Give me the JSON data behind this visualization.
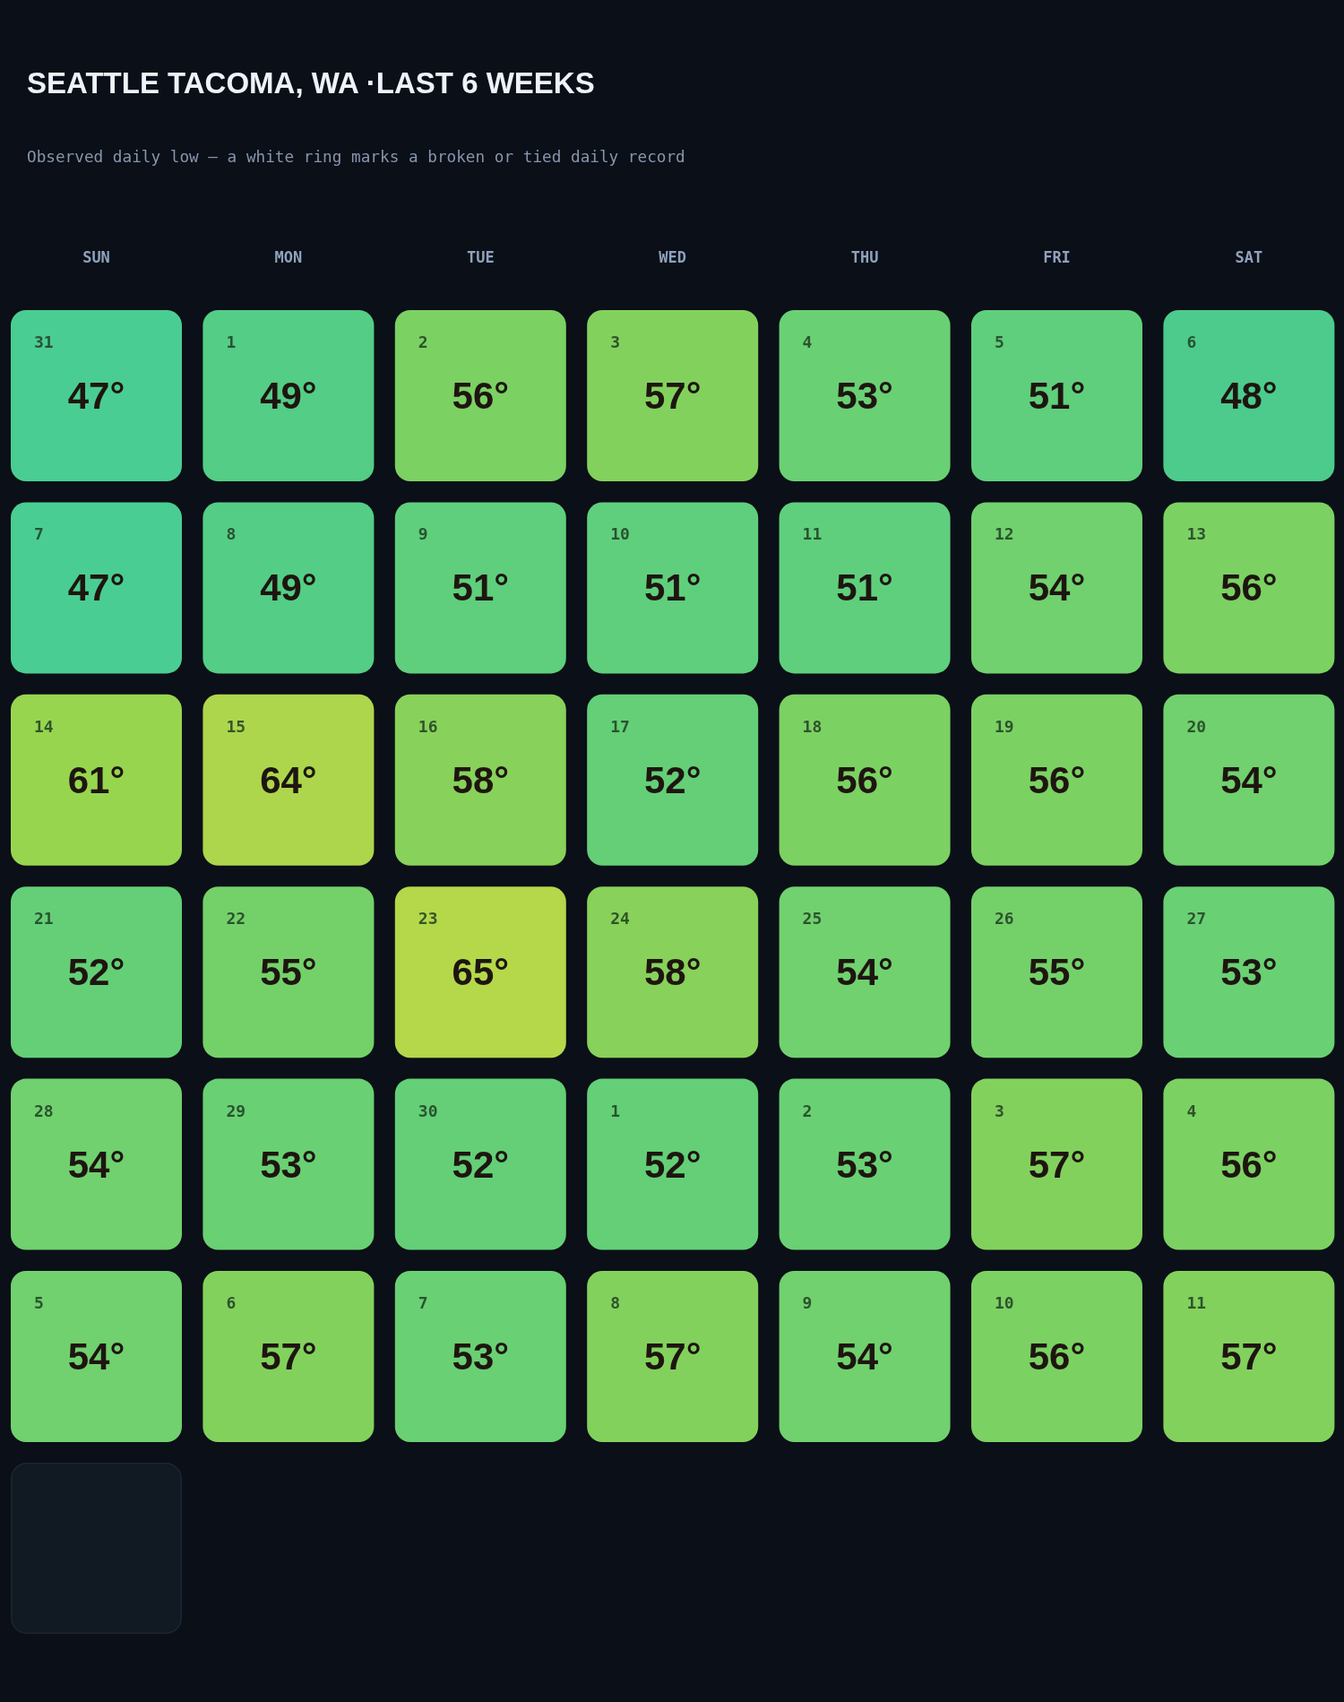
{
  "chart_data": {
    "type": "heatmap",
    "title": "SEATTLE TACOMA, WA ·LAST 6 WEEKS",
    "subtitle": "Observed daily low — a white ring marks a broken or tied daily record",
    "categories": [
      "SUN",
      "MON",
      "TUE",
      "WED",
      "THU",
      "FRI",
      "SAT"
    ],
    "y_categories": [
      null,
      null,
      null,
      null,
      null,
      null
    ],
    "cells": [
      [
        47,
        49,
        56,
        57,
        53,
        51,
        48
      ],
      [
        47,
        49,
        51,
        51,
        51,
        54,
        56
      ],
      [
        61,
        64,
        58,
        52,
        56,
        56,
        54
      ],
      [
        52,
        55,
        65,
        58,
        54,
        55,
        53
      ],
      [
        54,
        53,
        52,
        52,
        53,
        57,
        56
      ],
      [
        54,
        57,
        53,
        57,
        54,
        56,
        57
      ]
    ],
    "cell_labels": [
      [
        "47°",
        "49°",
        "56°",
        "57°",
        "53°",
        "51°",
        "48°"
      ],
      [
        "47°",
        "49°",
        "51°",
        "51°",
        "51°",
        "54°",
        "56°"
      ],
      [
        "61°",
        "64°",
        "58°",
        "52°",
        "56°",
        "56°",
        "54°"
      ],
      [
        "52°",
        "55°",
        "65°",
        "58°",
        "54°",
        "55°",
        "53°"
      ],
      [
        "54°",
        "53°",
        "52°",
        "52°",
        "53°",
        "57°",
        "56°"
      ],
      [
        "54°",
        "57°",
        "53°",
        "57°",
        "54°",
        "56°",
        "57°"
      ]
    ],
    "annotations": [
      "31",
      "1",
      "2",
      "3",
      "4",
      "5",
      "6",
      "7",
      "8",
      "9",
      "10",
      "11",
      "12",
      "13",
      "14",
      "15",
      "16",
      "17",
      "18",
      "19",
      "20",
      "21",
      "22",
      "23",
      "24",
      "25",
      "26",
      "27",
      "28",
      "29",
      "30",
      "1",
      "2",
      "3",
      "4",
      "5",
      "6",
      "7",
      "8",
      "9",
      "10",
      "11"
    ],
    "colors": [
      [
        "#4acd92",
        "#54cd86",
        "#7cd163",
        "#83d15d",
        "#6ad074",
        "#5fcf7d",
        "#4ccb8d"
      ],
      [
        "#4acd92",
        "#54cd86",
        "#5fcf7d",
        "#5fcf7d",
        "#5fcf7d",
        "#70d16e",
        "#7cd163"
      ],
      [
        "#98d54f",
        "#add64c",
        "#88d15a",
        "#64cf77",
        "#7cd163",
        "#7cd163",
        "#70d16e"
      ],
      [
        "#64cf77",
        "#74d16a",
        "#b4d84a",
        "#88d15a",
        "#70d16e",
        "#74d16a",
        "#6ad074"
      ],
      [
        "#70d16e",
        "#6ad074",
        "#64cf77",
        "#64cf77",
        "#6ad074",
        "#83d15d",
        "#7cd163"
      ],
      [
        "#70d16e",
        "#83d15d",
        "#6ad074",
        "#83d15d",
        "#70d16e",
        "#7cd163",
        "#83d15d"
      ]
    ]
  }
}
